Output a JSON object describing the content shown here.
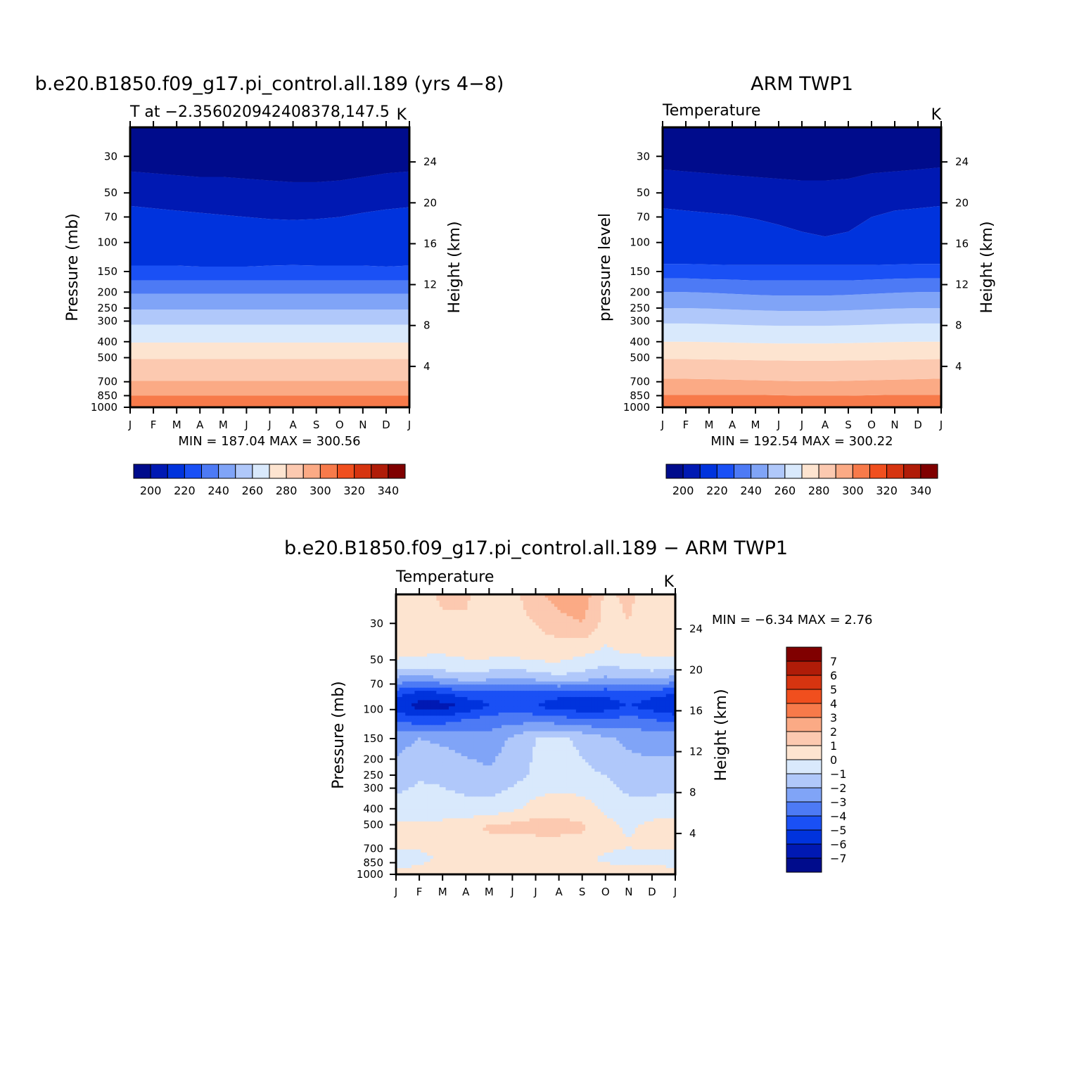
{
  "colors": {
    "temp_palette": [
      "#000c8c",
      "#0019b3",
      "#0033dd",
      "#1a50f5",
      "#4d7af5",
      "#80a4f7",
      "#b0c8fa",
      "#d9e9fc",
      "#fde4d0",
      "#fcc9b0",
      "#fbaa85",
      "#f77a4a",
      "#f04f1e",
      "#d63410",
      "#b01c08",
      "#800000"
    ],
    "diff_palette": [
      "#000c8c",
      "#0019b3",
      "#0033dd",
      "#1a50f5",
      "#4d7af5",
      "#80a4f7",
      "#b0c8fa",
      "#d9e9fc",
      "#fde4d0",
      "#fcc9b0",
      "#fbaa85",
      "#f77a4a",
      "#f04f1e",
      "#d63410",
      "#b01c08",
      "#800000"
    ]
  },
  "panels": {
    "model": {
      "title": "b.e20.B1850.f09_g17.pi_control.all.189 (yrs 4−8)",
      "left_string": "T at −2.356020942408378,147.5",
      "right_string": "K",
      "ylabel": "Pressure (mb)",
      "ylabel_right": "Height (km)",
      "minmax": "MIN = 187.04 MAX = 300.56"
    },
    "obs": {
      "title": "ARM TWP1",
      "left_string": "Temperature",
      "right_string": "K",
      "ylabel": "pressure level",
      "ylabel_right": "Height (km)",
      "minmax": "MIN = 192.54 MAX = 300.22"
    },
    "diff": {
      "title": "b.e20.B1850.f09_g17.pi_control.all.189 − ARM TWP1",
      "left_string": "Temperature",
      "right_string": "K",
      "ylabel": "Pressure (mb)",
      "ylabel_right": "Height (km)",
      "minmax": "MIN =   −6.34 MAX =    2.76"
    }
  },
  "chart_data": [
    {
      "type": "heatmap",
      "name": "model",
      "x": [
        "J",
        "F",
        "M",
        "A",
        "M",
        "J",
        "J",
        "A",
        "S",
        "O",
        "N",
        "D",
        "J"
      ],
      "pressure_ticks": [
        30,
        50,
        70,
        100,
        150,
        200,
        250,
        300,
        400,
        500,
        700,
        850,
        1000
      ],
      "height_ticks_km": [
        4,
        8,
        12,
        16,
        20,
        24
      ],
      "ylim_mb": [
        1000,
        20
      ],
      "colorbar_labels": [
        "200",
        "220",
        "240",
        "260",
        "280",
        "300",
        "320",
        "340"
      ],
      "contour_levels": [
        190,
        200,
        210,
        220,
        230,
        240,
        250,
        260,
        270,
        280,
        290,
        300,
        310,
        320,
        330,
        340
      ],
      "band_boundaries_mb": [
        {
          "level": 300,
          "p": [
            995,
            995,
            995,
            995,
            995,
            995,
            995,
            995,
            995,
            995,
            995,
            995,
            995
          ]
        },
        {
          "level": 290,
          "p": [
            850,
            850,
            850,
            850,
            850,
            850,
            850,
            850,
            850,
            850,
            850,
            850,
            850
          ]
        },
        {
          "level": 280,
          "p": [
            690,
            690,
            690,
            690,
            690,
            690,
            690,
            690,
            690,
            690,
            690,
            690,
            690
          ]
        },
        {
          "level": 270,
          "p": [
            510,
            510,
            510,
            510,
            510,
            510,
            510,
            510,
            510,
            510,
            510,
            510,
            510
          ]
        },
        {
          "level": 260,
          "p": [
            405,
            405,
            405,
            405,
            405,
            405,
            405,
            405,
            405,
            405,
            405,
            405,
            405
          ]
        },
        {
          "level": 250,
          "p": [
            315,
            315,
            315,
            315,
            315,
            315,
            315,
            315,
            315,
            315,
            315,
            315,
            315
          ]
        },
        {
          "level": 240,
          "p": [
            255,
            255,
            255,
            255,
            255,
            255,
            255,
            255,
            255,
            255,
            255,
            255,
            255
          ]
        },
        {
          "level": 230,
          "p": [
            205,
            205,
            205,
            205,
            205,
            205,
            205,
            205,
            205,
            205,
            205,
            205,
            205
          ]
        },
        {
          "level": 220,
          "p": [
            170,
            170,
            170,
            170,
            170,
            170,
            170,
            170,
            170,
            170,
            170,
            170,
            170
          ]
        },
        {
          "level": 210,
          "p": [
            138,
            138,
            138,
            140,
            140,
            140,
            138,
            137,
            138,
            138,
            138,
            140,
            138
          ]
        },
        {
          "level": 200,
          "p": [
            60,
            62,
            64,
            66,
            68,
            70,
            72,
            73,
            72,
            70,
            66,
            63,
            61
          ]
        },
        {
          "level": 190,
          "p": [
            37,
            38,
            39,
            40,
            40,
            41,
            42,
            43,
            43,
            42,
            40,
            38,
            37
          ]
        }
      ],
      "min": 187.04,
      "max": 300.56
    },
    {
      "type": "heatmap",
      "name": "obs",
      "x": [
        "J",
        "F",
        "M",
        "A",
        "M",
        "J",
        "J",
        "A",
        "S",
        "O",
        "N",
        "D",
        "J"
      ],
      "pressure_ticks": [
        30,
        50,
        70,
        100,
        150,
        200,
        250,
        300,
        400,
        500,
        700,
        850,
        1000
      ],
      "height_ticks_km": [
        4,
        8,
        12,
        16,
        20,
        24
      ],
      "ylim_mb": [
        1000,
        20
      ],
      "colorbar_labels": [
        "200",
        "220",
        "240",
        "260",
        "280",
        "300",
        "320",
        "340"
      ],
      "contour_levels": [
        190,
        200,
        210,
        220,
        230,
        240,
        250,
        260,
        270,
        280,
        290,
        300,
        310,
        320,
        330,
        340
      ],
      "band_boundaries_mb": [
        {
          "level": 290,
          "p": [
            840,
            840,
            840,
            840,
            840,
            845,
            850,
            850,
            850,
            845,
            840,
            840,
            840
          ]
        },
        {
          "level": 280,
          "p": [
            670,
            672,
            675,
            680,
            685,
            690,
            695,
            695,
            690,
            685,
            680,
            675,
            670
          ]
        },
        {
          "level": 270,
          "p": [
            510,
            510,
            512,
            515,
            518,
            520,
            522,
            522,
            520,
            518,
            515,
            512,
            510
          ]
        },
        {
          "level": 260,
          "p": [
            400,
            400,
            402,
            405,
            408,
            410,
            410,
            410,
            408,
            405,
            402,
            400,
            400
          ]
        },
        {
          "level": 250,
          "p": [
            310,
            310,
            312,
            315,
            318,
            320,
            320,
            320,
            318,
            315,
            312,
            310,
            310
          ]
        },
        {
          "level": 240,
          "p": [
            250,
            250,
            252,
            255,
            258,
            260,
            260,
            260,
            258,
            255,
            252,
            250,
            250
          ]
        },
        {
          "level": 230,
          "p": [
            200,
            200,
            202,
            205,
            208,
            210,
            210,
            210,
            208,
            205,
            202,
            200,
            200
          ]
        },
        {
          "level": 220,
          "p": [
            165,
            165,
            167,
            168,
            170,
            170,
            170,
            170,
            170,
            168,
            166,
            165,
            165
          ]
        },
        {
          "level": 210,
          "p": [
            135,
            135,
            136,
            137,
            137,
            137,
            137,
            137,
            137,
            137,
            136,
            135,
            135
          ]
        },
        {
          "level": 200,
          "p": [
            62,
            64,
            66,
            68,
            72,
            78,
            86,
            92,
            86,
            70,
            64,
            62,
            60
          ]
        },
        {
          "level": 190,
          "p": [
            36,
            37,
            38,
            39,
            40,
            41,
            42,
            42,
            41,
            38,
            37,
            36,
            35
          ]
        }
      ],
      "min": 192.54,
      "max": 300.22
    },
    {
      "type": "heatmap",
      "name": "difference",
      "x": [
        "J",
        "F",
        "M",
        "A",
        "M",
        "J",
        "J",
        "A",
        "S",
        "O",
        "N",
        "D",
        "J"
      ],
      "pressure_ticks": [
        30,
        50,
        70,
        100,
        150,
        200,
        250,
        300,
        400,
        500,
        700,
        850,
        1000
      ],
      "height_ticks_km": [
        4,
        8,
        12,
        16,
        20,
        24
      ],
      "ylim_mb": [
        1000,
        20
      ],
      "colorbar_labels": [
        "7",
        "6",
        "5",
        "4",
        "3",
        "2",
        "1",
        "0",
        "−1",
        "−2",
        "−3",
        "−4",
        "−5",
        "−6",
        "−7"
      ],
      "contour_levels": [
        -7,
        -6,
        -5,
        -4,
        -3,
        -2,
        -1,
        0,
        1,
        2,
        3,
        4,
        5,
        6,
        7
      ],
      "profile_levels_mb": [
        20,
        30,
        45,
        55,
        65,
        80,
        95,
        115,
        150,
        250,
        400,
        520,
        650,
        800,
        1000
      ],
      "values": [
        [
          0.6,
          0.6,
          1.2,
          1.1,
          0.7,
          0.6,
          1.8,
          2.5,
          2.7,
          0.8,
          1.2,
          0.5,
          0.5
        ],
        [
          0.5,
          0.4,
          0.8,
          0.9,
          0.6,
          0.5,
          1.0,
          1.6,
          2.0,
          0.6,
          1.0,
          0.4,
          0.4
        ],
        [
          0.4,
          0.2,
          0.1,
          0.3,
          0.4,
          0.4,
          0.6,
          0.4,
          0.2,
          -0.2,
          0.1,
          0.2,
          0.3
        ],
        [
          -0.5,
          -0.8,
          -0.6,
          -0.4,
          -0.6,
          -0.8,
          -0.4,
          -0.2,
          -0.6,
          -1.1,
          -0.8,
          -0.6,
          -0.8
        ],
        [
          -2.2,
          -2.6,
          -2.0,
          -1.6,
          -1.8,
          -2.2,
          -1.8,
          -1.4,
          -1.6,
          -2.2,
          -2.0,
          -1.8,
          -2.4
        ],
        [
          -4.6,
          -5.4,
          -5.2,
          -4.5,
          -4.6,
          -4.2,
          -4.4,
          -4.6,
          -4.5,
          -4.8,
          -4.2,
          -4.6,
          -5.0
        ],
        [
          -5.6,
          -6.4,
          -6.4,
          -5.8,
          -5.0,
          -4.4,
          -5.0,
          -5.6,
          -5.8,
          -5.6,
          -5.0,
          -5.6,
          -6.0
        ],
        [
          -4.2,
          -4.6,
          -4.5,
          -4.0,
          -3.6,
          -3.4,
          -3.4,
          -3.6,
          -3.8,
          -4.0,
          -3.6,
          -4.0,
          -4.4
        ],
        [
          -2.4,
          -2.0,
          -2.2,
          -2.4,
          -2.6,
          -1.8,
          -1.0,
          -0.8,
          -1.2,
          -1.8,
          -2.2,
          -2.4,
          -2.4
        ],
        [
          -1.6,
          -1.1,
          -1.2,
          -1.6,
          -1.8,
          -1.4,
          -0.8,
          -0.6,
          -0.8,
          -1.0,
          -1.6,
          -1.6,
          -1.6
        ],
        [
          -0.5,
          -0.6,
          -0.6,
          -0.6,
          -0.6,
          -0.2,
          0.4,
          0.6,
          0.5,
          -0.2,
          -0.6,
          -0.6,
          -0.5
        ],
        [
          0.3,
          0.4,
          0.4,
          0.6,
          1.2,
          1.4,
          1.6,
          1.4,
          1.2,
          0.4,
          -0.2,
          0.4,
          0.5
        ],
        [
          0.2,
          0.2,
          0.4,
          0.6,
          0.6,
          0.4,
          0.4,
          0.6,
          0.5,
          0.2,
          0.1,
          0.2,
          0.2
        ],
        [
          -0.4,
          -0.2,
          0.1,
          0.3,
          0.3,
          0.2,
          0.2,
          0.2,
          0.1,
          -0.1,
          -0.3,
          -0.2,
          -0.4
        ],
        [
          0.2,
          0.3,
          0.3,
          0.4,
          0.5,
          0.4,
          0.3,
          0.3,
          0.3,
          0.3,
          0.3,
          0.3,
          0.3
        ]
      ],
      "min": -6.34,
      "max": 2.76
    }
  ]
}
